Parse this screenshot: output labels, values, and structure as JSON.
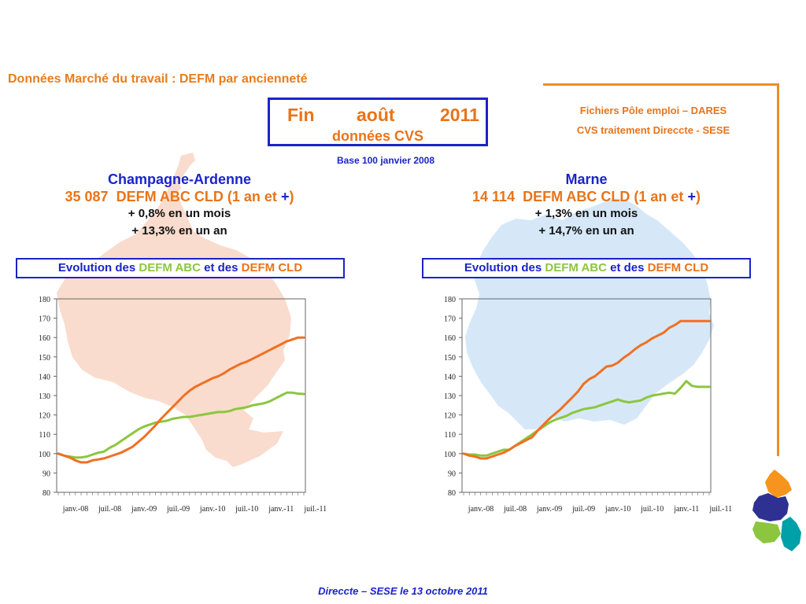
{
  "header": {
    "title": "Données Marché du travail : DEFM par ancienneté",
    "fin_words": [
      "Fin",
      "août",
      "2011"
    ],
    "fin_sub": "données CVS",
    "source_line1": "Fichiers Pôle emploi – DARES",
    "source_line2": "CVS traitement Direccte - SESE",
    "base": "Base 100 janvier 2008"
  },
  "panels": [
    {
      "region": "Champagne-Ardenne",
      "stat_num": "35 087",
      "stat_text": "DEFM ABC CLD (1 an et",
      "stat_plus": "+",
      "stat_close": ")",
      "delta1_sign": "+",
      "delta1_text": " 0,8% en un mois",
      "delta2_sign": "+",
      "delta2_text": " 13,3% en un an",
      "evo_a": "Evolution des ",
      "evo_b": "DEFM ABC",
      "evo_c": " et des ",
      "evo_d": "DEFM CLD"
    },
    {
      "region": "Marne",
      "stat_num": "14 114",
      "stat_text": "DEFM ABC CLD (1 an et",
      "stat_plus": "+",
      "stat_close": ")",
      "delta1_sign": "+",
      "delta1_text": " 1,3% en un mois",
      "delta2_sign": "+",
      "delta2_text": " 14,7% en un an",
      "evo_a": "Evolution des ",
      "evo_b": "DEFM ABC",
      "evo_c": " et des ",
      "evo_d": "DEFM CLD"
    }
  ],
  "footer": "Direccte – SESE le 13 octobre 2011",
  "colors": {
    "abc": "#8cc63f",
    "cld": "#f07022",
    "map_left": "#f9dccd",
    "map_right": "#d6e8f8",
    "accent_blue": "#1a24c8",
    "accent_orange": "#e8741a"
  },
  "chart_data": [
    {
      "type": "line",
      "title": "",
      "ylim": [
        80,
        180
      ],
      "yticks": [
        80,
        90,
        100,
        110,
        120,
        130,
        140,
        150,
        160,
        170,
        180
      ],
      "x_tick_labels": [
        "janv.-08",
        "juil.-08",
        "janv.-09",
        "juil.-09",
        "janv.-10",
        "juil.-10",
        "janv.-11",
        "juil.-11"
      ],
      "x_months_from_start": 43,
      "series": [
        {
          "name": "DEFM ABC",
          "color": "#8cc63f",
          "values": [
            100,
            99,
            98.5,
            98,
            98,
            98.5,
            99.5,
            100.5,
            101,
            103,
            104.5,
            106.5,
            108.5,
            110.5,
            112.5,
            114,
            115,
            116,
            116.5,
            117,
            118,
            118.5,
            119,
            119,
            119.5,
            120,
            120.5,
            121,
            121.5,
            121.5,
            122,
            123,
            123.5,
            124,
            125,
            125.5,
            126,
            127,
            128.5,
            130,
            131.5,
            131.5,
            131,
            130.8
          ]
        },
        {
          "name": "DEFM CLD",
          "color": "#f07022",
          "values": [
            100,
            99,
            98,
            96.5,
            95.5,
            95.5,
            96.5,
            97,
            97.5,
            98.5,
            99.5,
            100.5,
            102,
            103.5,
            106,
            108.5,
            111.5,
            114.5,
            118,
            121,
            124,
            127,
            130,
            132.5,
            134.5,
            136,
            137.5,
            139,
            140,
            141.5,
            143.5,
            145,
            146.5,
            147.5,
            149,
            150.5,
            152,
            153.5,
            155,
            156.5,
            158,
            159,
            160,
            160
          ]
        }
      ]
    },
    {
      "type": "line",
      "title": "",
      "ylim": [
        80,
        180
      ],
      "yticks": [
        80,
        90,
        100,
        110,
        120,
        130,
        140,
        150,
        160,
        170,
        180
      ],
      "x_tick_labels": [
        "janv.-08",
        "juil.-08",
        "janv.-09",
        "juil.-09",
        "janv.-10",
        "juil.-10",
        "janv.-11",
        "juil.-11"
      ],
      "x_months_from_start": 43,
      "series": [
        {
          "name": "DEFM ABC",
          "color": "#8cc63f",
          "values": [
            100,
            99.5,
            99.5,
            99,
            99,
            100,
            101,
            102,
            102,
            104,
            106,
            108,
            110,
            112,
            114,
            116,
            117.5,
            118.5,
            119.5,
            121,
            122,
            123,
            123.5,
            124,
            125,
            126,
            127,
            128,
            127,
            126.5,
            127,
            127.5,
            129,
            130,
            130.5,
            131,
            131.5,
            131,
            134,
            137.5,
            135,
            134.5,
            134.5,
            134.5
          ]
        },
        {
          "name": "DEFM CLD",
          "color": "#f07022",
          "values": [
            100,
            99,
            98.5,
            97.5,
            97.5,
            98.5,
            99.5,
            100.5,
            102,
            104,
            105.5,
            107,
            108.5,
            112,
            115,
            118,
            120.5,
            123,
            126,
            129,
            132,
            136,
            138.5,
            140,
            142.5,
            145,
            145.5,
            147,
            149.5,
            151.5,
            154,
            156,
            157.5,
            159.5,
            161,
            162.5,
            165,
            166.5,
            168.5,
            168.5,
            168.5,
            168.5,
            168.5,
            168.5
          ]
        }
      ]
    }
  ]
}
